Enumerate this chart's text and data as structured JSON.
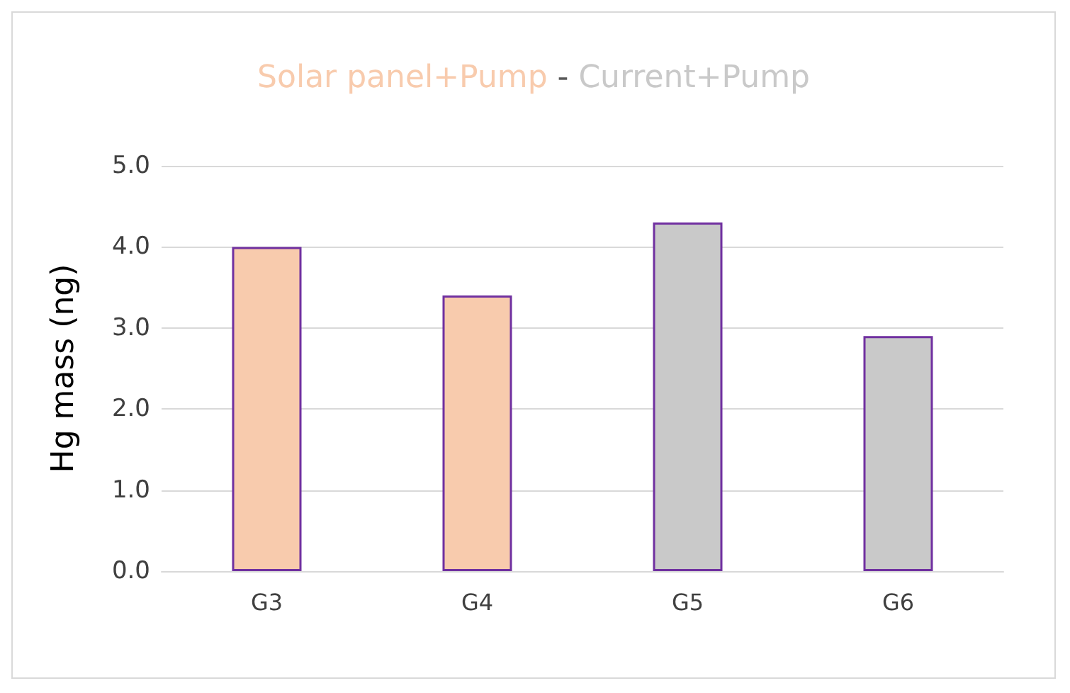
{
  "chart_data": {
    "type": "bar",
    "ylabel": "Hg mass (ng)",
    "annotations": [
      "-"
    ],
    "categories": [
      "G3",
      "G4",
      "G5",
      "G6"
    ],
    "series": [
      {
        "name": "Solar panel+Pump",
        "color": "#f8cbad",
        "values": [
          4.0,
          3.4,
          null,
          null
        ]
      },
      {
        "name": "Current+Pump",
        "color": "#c9c9c9",
        "values": [
          null,
          null,
          4.3,
          2.9
        ]
      }
    ],
    "ylim": [
      0,
      5
    ],
    "yticks": [
      {
        "value": 0,
        "label": "0.0"
      },
      {
        "value": 1,
        "label": "1.0"
      },
      {
        "value": 2,
        "label": "2.0"
      },
      {
        "value": 3,
        "label": "3.0"
      },
      {
        "value": 4,
        "label": "4.0"
      },
      {
        "value": 5,
        "label": "5.0"
      }
    ],
    "grid": "y",
    "legend": "top"
  }
}
